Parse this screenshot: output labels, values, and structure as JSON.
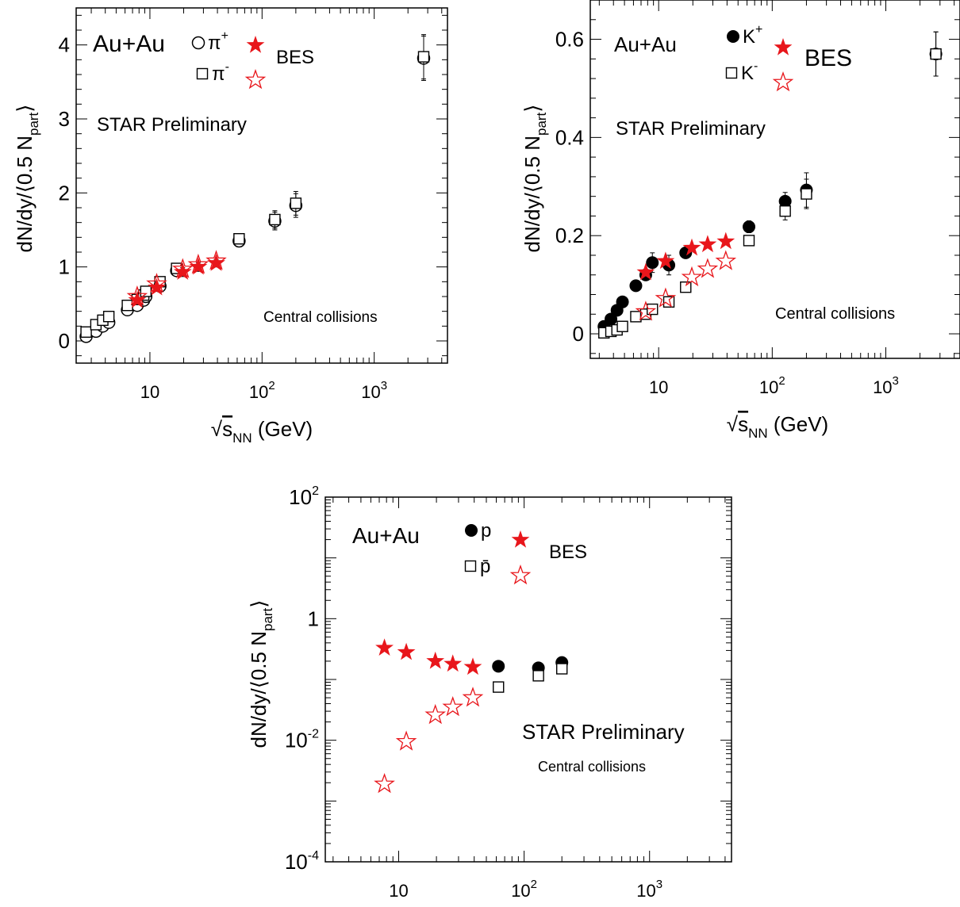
{
  "chart_data": [
    {
      "type": "scatter",
      "x_scale": "log",
      "y_scale": "linear",
      "xlim": [
        2.2,
        4500
      ],
      "ylim": [
        -0.3,
        4.5
      ],
      "x_ticks": [
        {
          "value": 10,
          "base": "10",
          "exp": ""
        },
        {
          "value": 100,
          "base": "10",
          "exp": "2"
        },
        {
          "value": 1000,
          "base": "10",
          "exp": "3"
        }
      ],
      "y_ticks": [
        {
          "value": 0,
          "label": "0"
        },
        {
          "value": 1,
          "label": "1"
        },
        {
          "value": 2,
          "label": "2"
        },
        {
          "value": 3,
          "label": "3"
        },
        {
          "value": 4,
          "label": "4"
        }
      ],
      "xlabel": {
        "prefix": "√",
        "var": "s",
        "sub": "NN",
        "unit": " (GeV)"
      },
      "ylabel": {
        "main": "dN/dy/⟨0.5 N",
        "sub": "part",
        "end": "⟩"
      },
      "system_label": "Au+Au",
      "legend": [
        {
          "marker": "open-circle",
          "label": "π",
          "sup": "+",
          "star": "filled"
        },
        {
          "marker": "open-square",
          "label": "π",
          "sup": "-",
          "star": "open"
        }
      ],
      "bes_label": "BES",
      "preliminary": "STAR Preliminary",
      "centrality": "Central collisions",
      "series": [
        {
          "name": "π+",
          "marker": "open-circle",
          "x": [
            2.7,
            3.3,
            3.8,
            4.3,
            6.3,
            7.7,
            8.8,
            9.2,
            12.3,
            17.3,
            62.4,
            130,
            200,
            2760
          ],
          "y": [
            0.06,
            0.13,
            0.2,
            0.25,
            0.42,
            0.48,
            0.55,
            0.6,
            0.74,
            0.95,
            1.35,
            1.62,
            1.83,
            3.82
          ],
          "err": [
            0,
            0,
            0,
            0,
            0,
            0,
            0,
            0,
            0.05,
            0.05,
            0.06,
            0.12,
            0.16,
            0.3
          ]
        },
        {
          "name": "π-",
          "marker": "open-square",
          "x": [
            2.7,
            3.3,
            3.8,
            4.3,
            6.3,
            7.7,
            8.8,
            9.2,
            12.3,
            17.3,
            62.4,
            130,
            200,
            2760
          ],
          "y": [
            0.12,
            0.22,
            0.28,
            0.33,
            0.48,
            0.56,
            0.62,
            0.67,
            0.8,
            0.98,
            1.38,
            1.64,
            1.86,
            3.84
          ],
          "err": [
            0,
            0,
            0,
            0,
            0,
            0,
            0,
            0,
            0.05,
            0.05,
            0.06,
            0.12,
            0.16,
            0.3
          ]
        },
        {
          "name": "π+ BES",
          "marker": "filled-star",
          "x": [
            7.7,
            11.5,
            19.6,
            27,
            39
          ],
          "y": [
            0.55,
            0.72,
            0.93,
            1.0,
            1.05
          ],
          "err": [
            0,
            0,
            0.06,
            0.06,
            0.05
          ]
        },
        {
          "name": "π- BES",
          "marker": "open-star",
          "x": [
            7.7,
            11.5,
            19.6,
            27,
            39
          ],
          "y": [
            0.6,
            0.77,
            0.97,
            1.03,
            1.08
          ],
          "err": [
            0,
            0,
            0,
            0,
            0
          ]
        }
      ]
    },
    {
      "type": "scatter",
      "x_scale": "log",
      "y_scale": "linear",
      "xlim": [
        2.5,
        4500
      ],
      "ylim": [
        -0.05,
        0.68
      ],
      "x_ticks": [
        {
          "value": 10,
          "base": "10",
          "exp": ""
        },
        {
          "value": 100,
          "base": "10",
          "exp": "2"
        },
        {
          "value": 1000,
          "base": "10",
          "exp": "3"
        }
      ],
      "y_ticks": [
        {
          "value": 0,
          "label": "0"
        },
        {
          "value": 0.2,
          "label": "0.2"
        },
        {
          "value": 0.4,
          "label": "0.4"
        },
        {
          "value": 0.6,
          "label": "0.6"
        }
      ],
      "xlabel": {
        "prefix": "√",
        "var": "s",
        "sub": "NN",
        "unit": " (GeV)"
      },
      "ylabel": {
        "main": "dN/dy/⟨0.5 N",
        "sub": "part",
        "end": "⟩"
      },
      "system_label": "Au+Au",
      "legend": [
        {
          "marker": "filled-circle",
          "label": "K",
          "sup": "+",
          "star": "filled"
        },
        {
          "marker": "open-square",
          "label": "K",
          "sup": "-",
          "star": "open"
        }
      ],
      "bes_label": "BES",
      "preliminary": "STAR Preliminary",
      "centrality": "Central collisions",
      "series": [
        {
          "name": "K+",
          "marker": "filled-circle",
          "x": [
            3.3,
            3.8,
            4.3,
            4.8,
            6.3,
            7.7,
            8.8,
            12.3,
            17.3,
            62.4,
            130,
            200,
            2760
          ],
          "y": [
            0.015,
            0.03,
            0.048,
            0.065,
            0.098,
            0.12,
            0.145,
            0.14,
            0.165,
            0.218,
            0.27,
            0.293,
            0.57
          ],
          "err": [
            0,
            0,
            0,
            0,
            0,
            0,
            0.02,
            0.02,
            0.01,
            0.012,
            0.018,
            0.035,
            0.045
          ]
        },
        {
          "name": "K-",
          "marker": "open-square",
          "x": [
            3.3,
            3.8,
            4.3,
            4.8,
            6.3,
            7.7,
            8.8,
            12.3,
            17.3,
            62.4,
            130,
            200,
            2760
          ],
          "y": [
            0.002,
            0.005,
            0.008,
            0.015,
            0.035,
            0.04,
            0.05,
            0.065,
            0.095,
            0.19,
            0.25,
            0.285,
            0.57
          ],
          "err": [
            0,
            0,
            0,
            0,
            0,
            0,
            0,
            0,
            0,
            0.01,
            0.018,
            0.03,
            0.045
          ]
        },
        {
          "name": "K+ BES",
          "marker": "filled-star",
          "x": [
            7.7,
            11.5,
            19.6,
            27,
            39
          ],
          "y": [
            0.125,
            0.148,
            0.175,
            0.182,
            0.188
          ],
          "err": [
            0,
            0,
            0,
            0,
            0
          ]
        },
        {
          "name": "K- BES",
          "marker": "open-star",
          "x": [
            7.7,
            11.5,
            19.6,
            27,
            39
          ],
          "y": [
            0.045,
            0.072,
            0.115,
            0.132,
            0.148
          ],
          "err": [
            0,
            0,
            0,
            0,
            0
          ]
        }
      ]
    },
    {
      "type": "scatter",
      "x_scale": "log",
      "y_scale": "log",
      "xlim": [
        2.6,
        4500
      ],
      "ylim": [
        0.0001,
        100
      ],
      "x_ticks": [
        {
          "value": 10,
          "base": "10",
          "exp": ""
        },
        {
          "value": 100,
          "base": "10",
          "exp": "2"
        },
        {
          "value": 1000,
          "base": "10",
          "exp": "3"
        }
      ],
      "y_ticks": [
        {
          "value": 0.0001,
          "base": "10",
          "exp": "-4"
        },
        {
          "value": 0.01,
          "base": "10",
          "exp": "-2"
        },
        {
          "value": 1,
          "base": "1",
          "exp": ""
        },
        {
          "value": 100,
          "base": "10",
          "exp": "2"
        }
      ],
      "xlabel": {
        "prefix": "√",
        "var": "s",
        "sub": "NN",
        "unit": " (GeV)"
      },
      "ylabel": {
        "main": "dN/dy/⟨0.5 N",
        "sub": "part",
        "end": "⟩"
      },
      "system_label": "Au+Au",
      "legend": [
        {
          "marker": "filled-circle",
          "label": "p",
          "sup": "",
          "star": "filled"
        },
        {
          "marker": "open-square",
          "label": "p̄",
          "sup": "",
          "star": "open"
        }
      ],
      "bes_label": "BES",
      "preliminary": "STAR Preliminary",
      "centrality": "Central collisions",
      "series": [
        {
          "name": "p",
          "marker": "filled-circle",
          "x": [
            62.4,
            130,
            200
          ],
          "y": [
            0.165,
            0.155,
            0.19
          ],
          "err": [
            0,
            0,
            0
          ]
        },
        {
          "name": "pbar",
          "marker": "open-square",
          "x": [
            62.4,
            130,
            200
          ],
          "y": [
            0.075,
            0.115,
            0.15
          ],
          "err": [
            0,
            0,
            0
          ]
        },
        {
          "name": "p BES",
          "marker": "filled-star",
          "x": [
            7.7,
            11.5,
            19.6,
            27,
            39
          ],
          "y": [
            0.33,
            0.28,
            0.2,
            0.18,
            0.16
          ],
          "err": [
            0,
            0,
            0,
            0,
            0
          ]
        },
        {
          "name": "pbar BES",
          "marker": "open-star",
          "x": [
            7.7,
            11.5,
            19.6,
            27,
            39
          ],
          "y": [
            0.0019,
            0.0095,
            0.026,
            0.035,
            0.05
          ],
          "err": [
            0,
            0,
            0,
            0,
            0
          ]
        }
      ]
    }
  ],
  "colors": {
    "data": "#000000",
    "bes": "#e8161b",
    "frame": "#000000"
  }
}
